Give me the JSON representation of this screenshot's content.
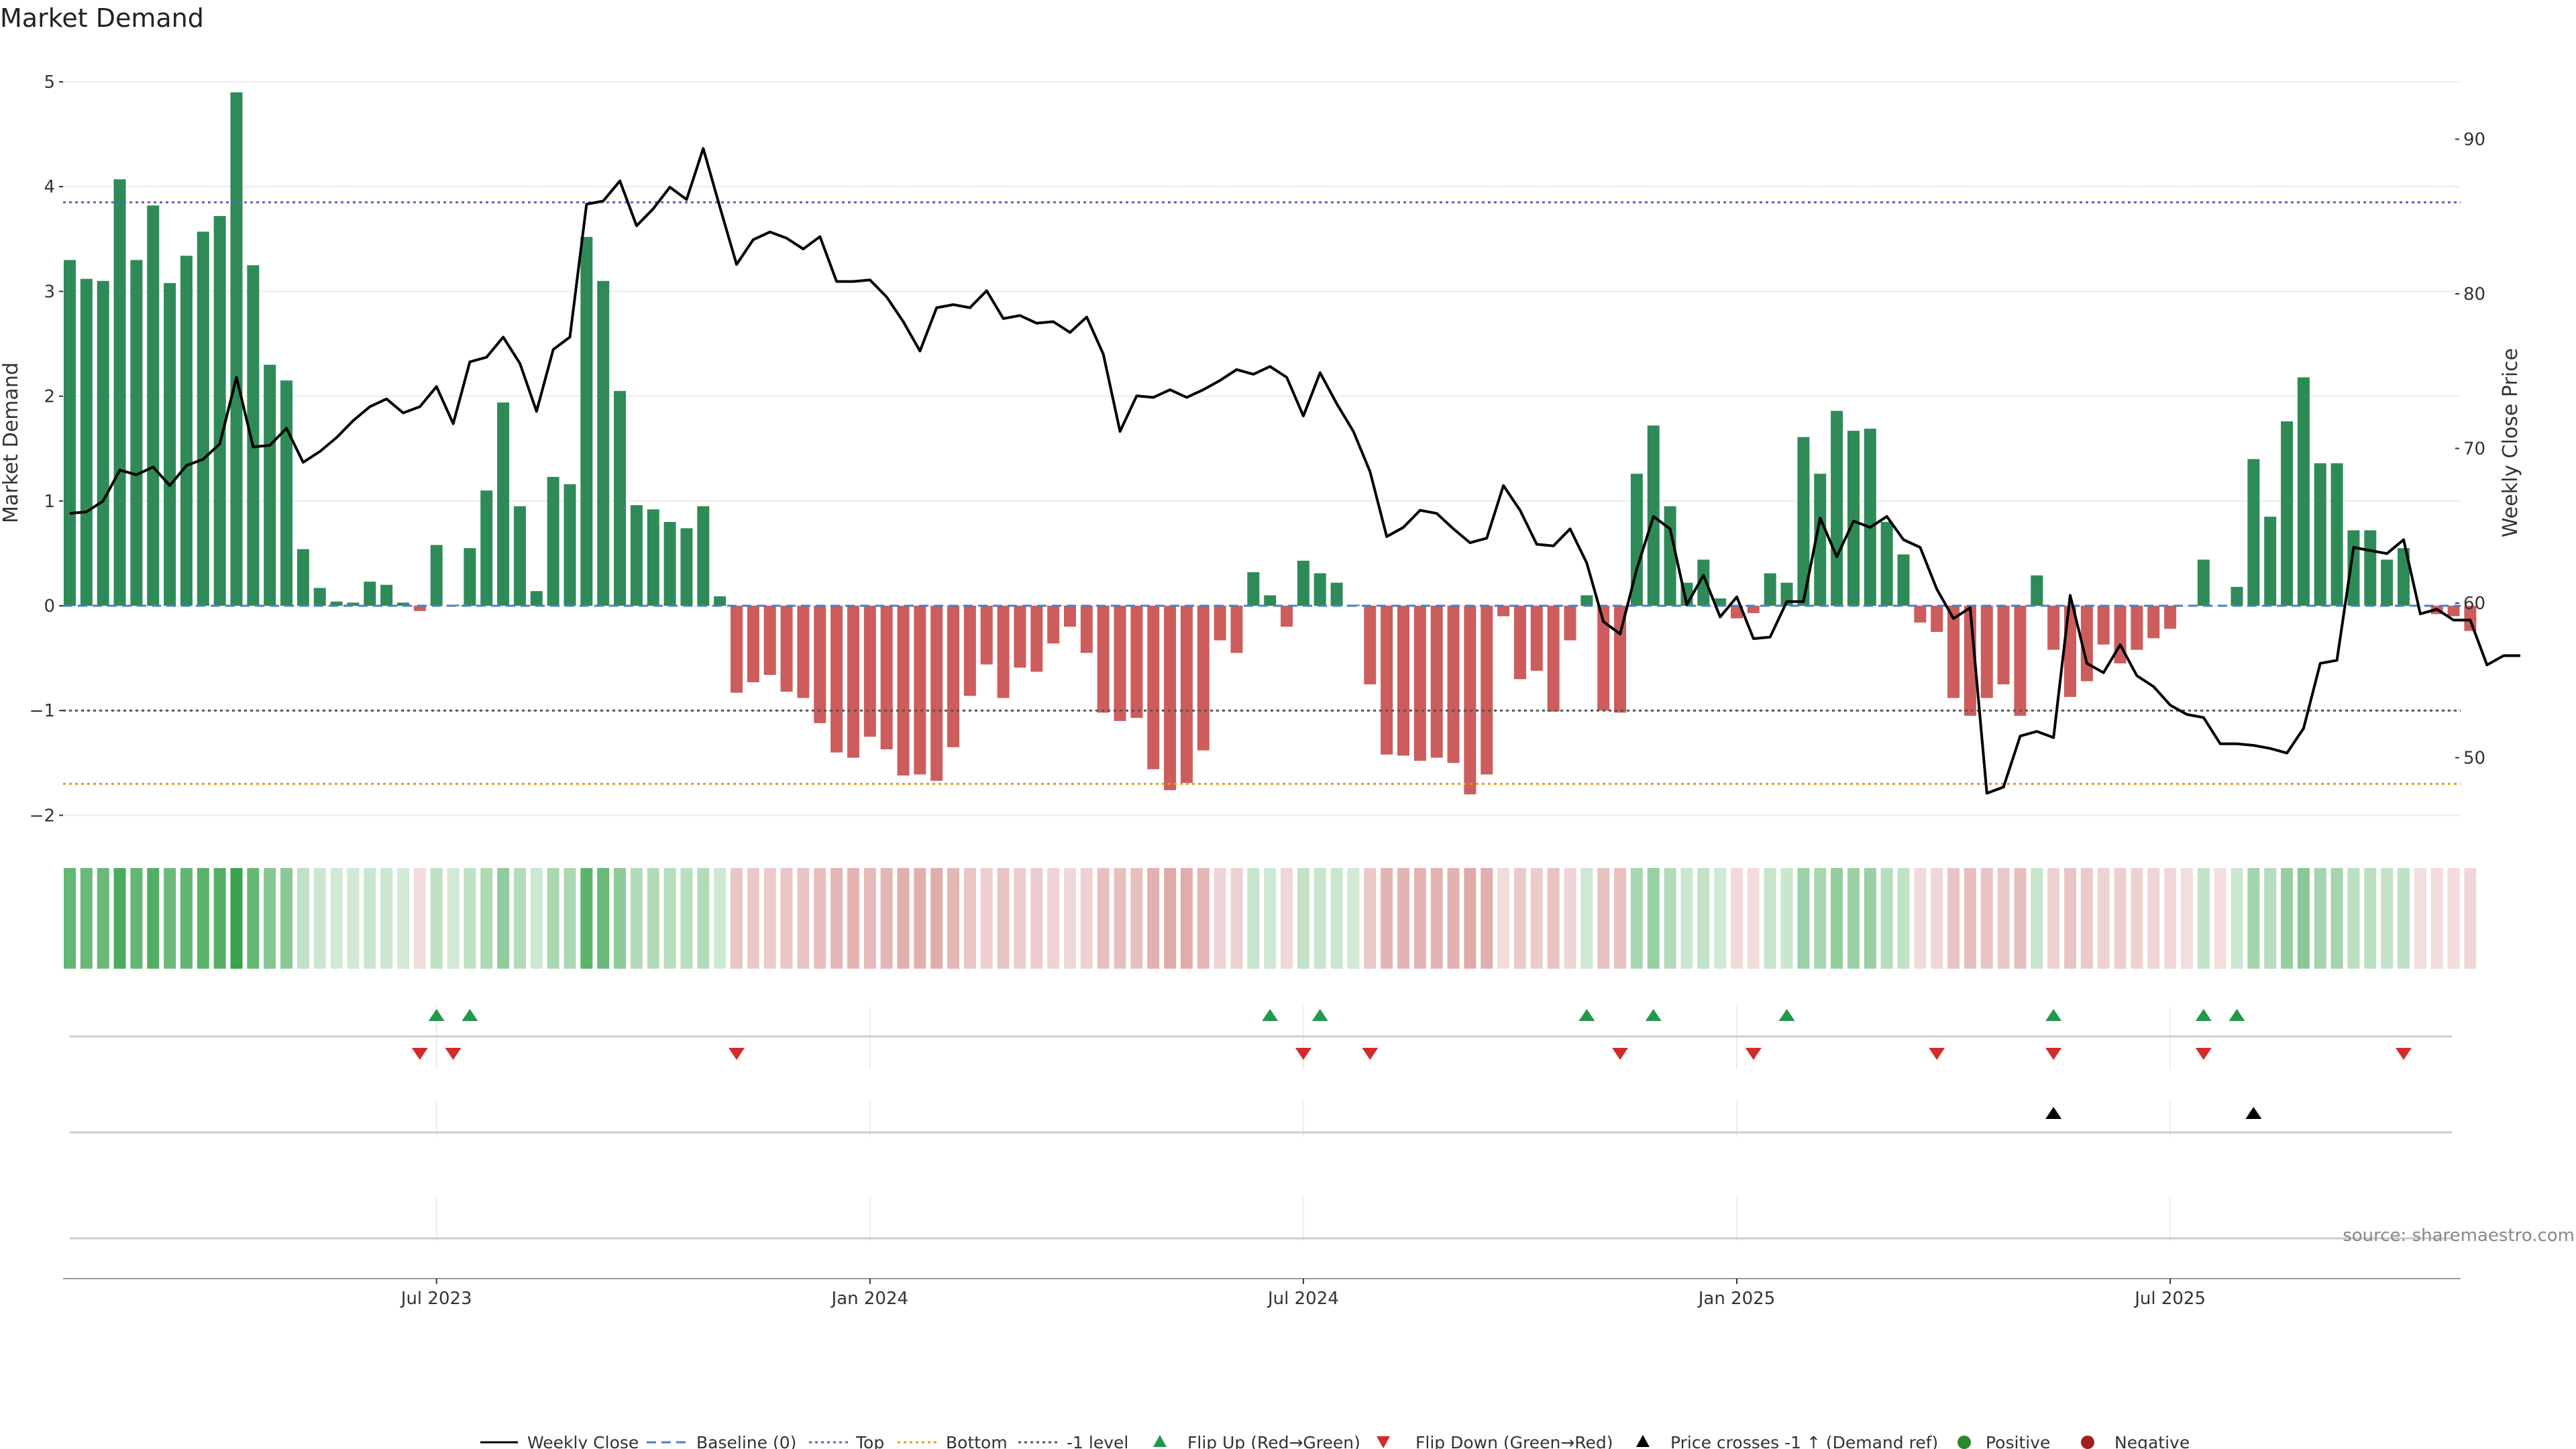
{
  "chart_data": {
    "type": "bar+line",
    "title": "Market Demand",
    "ylabel_left": "Market Demand",
    "ylabel_right": "Weekly Close Price",
    "source": "source: sharemaestro.com",
    "ylim_left": [
      -2.2,
      5.2
    ],
    "ylim_right": [
      45.1,
      93.9
    ],
    "yticks_left": [
      "5",
      "4",
      "3",
      "2",
      "1",
      "0",
      "−1",
      "−2"
    ],
    "yticks_left_values": [
      5,
      4,
      3,
      2,
      1,
      0,
      -1,
      -2
    ],
    "yticks_right": [
      "90",
      "80",
      "70",
      "60",
      "50"
    ],
    "yticks_right_values": [
      90,
      80,
      70,
      60,
      50
    ],
    "x_ticks": [
      "Jul 2023",
      "Jan 2024",
      "Jul 2024",
      "Jan 2025",
      "Jul 2025"
    ],
    "x_tick_week_index": [
      22,
      48,
      74,
      100,
      126
    ],
    "reference_lines": [
      {
        "name": "Baseline (0)",
        "value": 0,
        "color": "#4a7fc1",
        "style": "dashed"
      },
      {
        "name": "Top",
        "value": 3.85,
        "color": "#6b5fb5",
        "style": "dotted"
      },
      {
        "name": "Bottom",
        "value": -1.7,
        "color": "#e69a28",
        "style": "dotted"
      },
      {
        "name": "-1 level",
        "value": -1,
        "color": "#555555",
        "style": "dotted"
      }
    ],
    "series": [
      {
        "name": "Market Demand",
        "type": "bar",
        "values": [
          3.3,
          3.12,
          3.1,
          4.07,
          3.3,
          3.82,
          3.08,
          3.34,
          3.57,
          3.72,
          4.9,
          3.25,
          2.3,
          2.15,
          0.54,
          0.17,
          0.04,
          0.03,
          0.23,
          0.2,
          0.03,
          -0.05,
          0.58,
          0.01,
          0.55,
          1.1,
          1.94,
          0.95,
          0.14,
          1.23,
          1.16,
          3.52,
          3.1,
          2.05,
          0.96,
          0.92,
          0.8,
          0.74,
          0.95,
          0.09,
          -0.83,
          -0.73,
          -0.66,
          -0.82,
          -0.88,
          -1.12,
          -1.4,
          -1.45,
          -1.25,
          -1.37,
          -1.62,
          -1.61,
          -1.67,
          -1.35,
          -0.86,
          -0.56,
          -0.88,
          -0.59,
          -0.63,
          -0.36,
          -0.2,
          -0.45,
          -1.02,
          -1.1,
          -1.07,
          -1.56,
          -1.76,
          -1.69,
          -1.38,
          -0.33,
          -0.45,
          0.32,
          0.1,
          -0.2,
          0.43,
          0.31,
          0.22,
          0.01,
          -0.75,
          -1.42,
          -1.43,
          -1.48,
          -1.45,
          -1.5,
          -1.8,
          -1.61,
          -0.1,
          -0.7,
          -0.62,
          -1.01,
          -0.33,
          0.1,
          -1.0,
          -1.02,
          1.26,
          1.72,
          0.95,
          0.22,
          0.44,
          0.07,
          -0.12,
          -0.07,
          0.31,
          0.22,
          1.61,
          1.26,
          1.86,
          1.67,
          1.69,
          0.8,
          0.49,
          -0.16,
          -0.25,
          -0.88,
          -1.05,
          -0.88,
          -0.75,
          -1.05,
          0.29,
          -0.42,
          -0.87,
          -0.72,
          -0.37,
          -0.55,
          -0.42,
          -0.31,
          -0.22,
          0.0,
          0.44,
          0.0,
          0.18,
          1.4,
          0.85,
          1.76,
          2.18,
          1.36,
          1.36,
          0.72,
          0.72,
          0.44,
          0.55,
          0.0,
          -0.08,
          -0.1,
          -0.24
        ]
      },
      {
        "name": "Weekly Close",
        "type": "line",
        "values": [
          65.8,
          65.9,
          66.6,
          68.6,
          68.3,
          68.8,
          67.6,
          68.9,
          69.3,
          70.3,
          74.6,
          70.1,
          70.2,
          71.3,
          69.1,
          69.8,
          70.7,
          71.8,
          72.7,
          73.2,
          72.3,
          72.7,
          74.0,
          71.6,
          75.6,
          75.9,
          77.2,
          75.5,
          72.4,
          76.4,
          77.2,
          85.8,
          86.0,
          87.3,
          84.4,
          85.5,
          86.9,
          86.1,
          89.4,
          85.6,
          81.9,
          83.5,
          84.0,
          83.6,
          82.9,
          83.7,
          80.8,
          80.8,
          80.9,
          79.8,
          78.2,
          76.3,
          79.1,
          79.3,
          79.1,
          80.2,
          78.4,
          78.6,
          78.1,
          78.2,
          77.5,
          78.5,
          76.1,
          71.1,
          73.4,
          73.3,
          73.8,
          73.3,
          73.8,
          74.4,
          75.1,
          74.8,
          75.3,
          74.6,
          72.1,
          74.9,
          72.9,
          71.1,
          68.5,
          64.3,
          64.9,
          66.0,
          65.8,
          64.8,
          63.9,
          64.2,
          67.6,
          66.0,
          63.8,
          63.7,
          64.8,
          62.6,
          58.8,
          58.0,
          62.2,
          65.6,
          64.8,
          59.9,
          61.8,
          59.1,
          60.4,
          57.7,
          57.8,
          60.1,
          60.1,
          65.5,
          63.0,
          65.3,
          64.9,
          65.6,
          64.1,
          63.6,
          60.9,
          59.0,
          59.7,
          47.7,
          48.1,
          51.4,
          51.7,
          51.3,
          60.5,
          56.1,
          55.5,
          57.3,
          55.3,
          54.6,
          53.4,
          52.8,
          52.6,
          50.9,
          50.9,
          50.8,
          50.6,
          50.3,
          51.9,
          56.1,
          56.3,
          63.6,
          63.4,
          63.2,
          64.1,
          59.3,
          59.6,
          58.9,
          58.9,
          56.0,
          56.6,
          56.6
        ]
      }
    ],
    "flip_up_weeks": [
      22,
      24,
      72,
      75,
      91,
      95,
      103,
      119,
      128,
      130
    ],
    "flip_down_weeks": [
      21,
      23,
      40,
      74,
      78,
      93,
      101,
      112,
      119,
      128,
      140
    ],
    "price_cross_weeks": [
      119,
      131
    ],
    "legend": [
      "Weekly Close",
      "Baseline (0)",
      "Top",
      "Bottom",
      "-1 level",
      "Flip Up (Red→Green)",
      "Flip Down (Green→Red)",
      "Price crosses -1 ↑ (Demand ref)",
      "Positive",
      "Negative"
    ]
  },
  "colors": {
    "positive_bar": "#2e8b57",
    "negative_bar": "#cd5c5c",
    "price_line": "#000000",
    "flip_up": "#22994a",
    "flip_down": "#d42a2a",
    "price_cross": "#000000",
    "positive_dot": "#2a8a2a",
    "negative_dot": "#a02020"
  }
}
